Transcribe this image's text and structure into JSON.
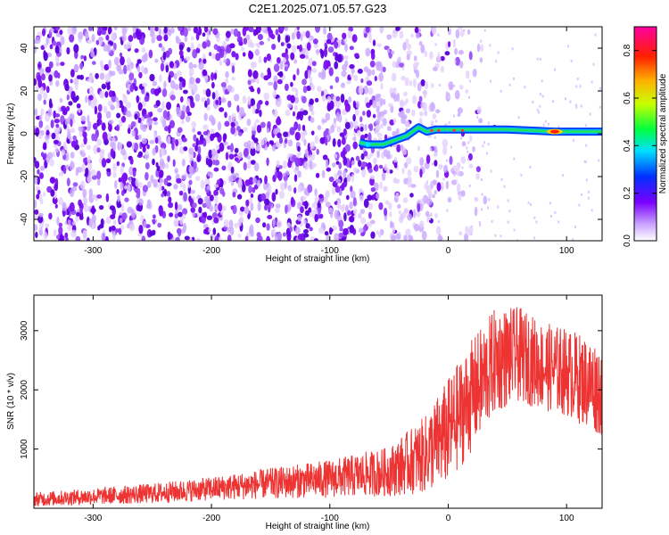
{
  "title": "C2E1.2025.071.05.57.G23",
  "chart_data": [
    {
      "type": "heatmap",
      "xlabel": "Height of straight line (km)",
      "ylabel": "Frequency (Hz)",
      "xlim": [
        -350,
        130
      ],
      "ylim": [
        -50,
        50
      ],
      "xticks": [
        -300,
        -200,
        -100,
        0,
        100
      ],
      "yticks": [
        -40,
        -20,
        0,
        20,
        40
      ],
      "colorbar": {
        "label": "Normalized spectral amplitude",
        "range": [
          0,
          0.9
        ],
        "ticks": [
          0,
          0.2,
          0.4,
          0.6,
          0.8
        ],
        "colormap": "rainbow (white, violet, blue, cyan, green, yellow, red, magenta)"
      },
      "features": {
        "noise_region_x": [
          -350,
          -20
        ],
        "signal_trace": [
          {
            "x": -75,
            "y": -4
          },
          {
            "x": -68,
            "y": -5
          },
          {
            "x": -55,
            "y": -5
          },
          {
            "x": -45,
            "y": -3
          },
          {
            "x": -35,
            "y": -1
          },
          {
            "x": -25,
            "y": 3
          },
          {
            "x": -18,
            "y": 1
          },
          {
            "x": -10,
            "y": 2
          },
          {
            "x": 0,
            "y": 2
          },
          {
            "x": 20,
            "y": 2
          },
          {
            "x": 50,
            "y": 2
          },
          {
            "x": 90,
            "y": 1
          },
          {
            "x": 130,
            "y": 1
          }
        ],
        "peak": {
          "x": 90,
          "y": 1,
          "value": 0.9
        }
      },
      "grid": false
    },
    {
      "type": "line",
      "xlabel": "Height of straight line (km)",
      "ylabel": "SNR (10 * v/v)",
      "xlim": [
        -350,
        130
      ],
      "ylim": [
        0,
        3600
      ],
      "xticks": [
        -300,
        -200,
        -100,
        0,
        100
      ],
      "yticks": [
        1000,
        2000,
        3000
      ],
      "grid": false,
      "color": "#ee3333",
      "series": [
        {
          "x": [
            -350,
            -300,
            -250,
            -200,
            -150,
            -100,
            -50,
            -20,
            0,
            20,
            40,
            60,
            80,
            100,
            130
          ],
          "y": [
            150,
            200,
            250,
            330,
            420,
            500,
            620,
            900,
            1300,
            1900,
            2500,
            2600,
            2400,
            2300,
            2000
          ],
          "spread": [
            120,
            140,
            170,
            200,
            260,
            320,
            420,
            650,
            900,
            950,
            900,
            800,
            750,
            750,
            800
          ]
        }
      ]
    }
  ],
  "colors": {
    "line": "#ee3333",
    "axis": "#000000"
  }
}
